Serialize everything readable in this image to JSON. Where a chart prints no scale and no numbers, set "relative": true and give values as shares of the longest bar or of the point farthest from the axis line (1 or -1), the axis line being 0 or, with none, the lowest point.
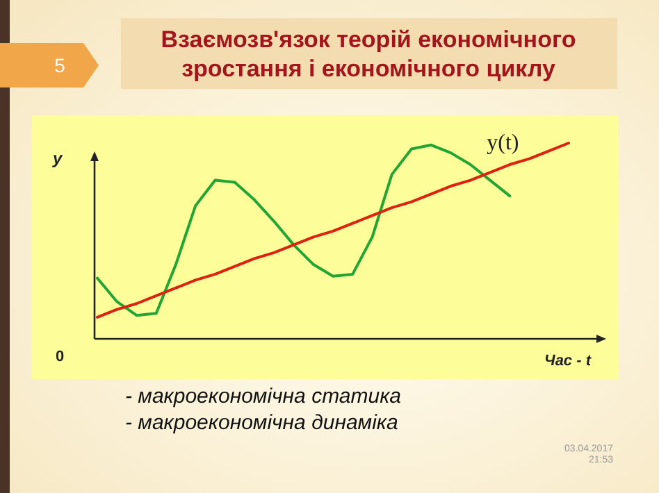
{
  "chart_data": {
    "type": "line",
    "title": "Взаємозв'язок теорій економічного зростання і економічного циклу",
    "xlabel": "Час - t",
    "ylabel": "y",
    "relative": true,
    "categories": [
      null,
      null,
      null,
      null,
      null,
      null,
      null,
      null,
      null,
      null,
      null,
      null,
      null,
      null,
      null,
      null,
      null,
      null,
      null,
      null,
      null,
      null,
      null,
      null,
      null
    ],
    "series": [
      {
        "name": "y(t)",
        "color": "#22a532",
        "values": [
          0.31,
          0.19,
          0.12,
          0.13,
          0.38,
          0.68,
          0.81,
          0.8,
          0.71,
          0.6,
          0.48,
          0.38,
          0.32,
          0.33,
          0.52,
          0.84,
          0.97,
          0.99,
          0.95,
          0.89,
          0.81,
          0.73,
          null,
          null,
          null
        ]
      },
      {
        "color": "#dd2211",
        "values": [
          0.11,
          0.15,
          0.18,
          0.22,
          0.26,
          0.3,
          0.33,
          0.37,
          0.41,
          0.44,
          0.48,
          0.52,
          0.55,
          0.59,
          0.63,
          0.67,
          0.7,
          0.74,
          0.78,
          0.81,
          0.85,
          0.89,
          0.92,
          0.96,
          1.0
        ]
      }
    ],
    "annotations": [
      "5",
      "0",
      "- макроекономічна статика",
      "- макроекономічна динаміка",
      "03.04.2017 21:53"
    ]
  }
}
